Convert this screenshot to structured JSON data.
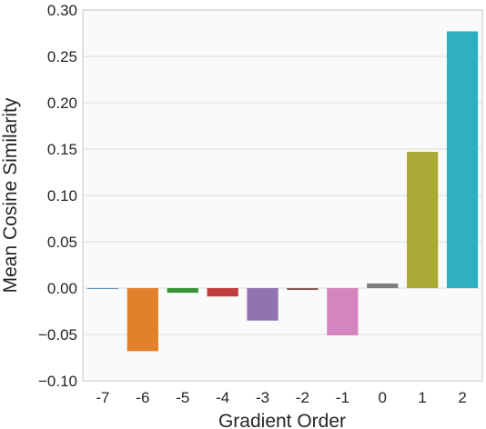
{
  "chart_data": {
    "type": "bar",
    "title": "",
    "xlabel": "Gradient Order",
    "ylabel": "Mean Cosine Similarity",
    "categories": [
      "-7",
      "-6",
      "-5",
      "-4",
      "-3",
      "-2",
      "-1",
      "0",
      "1",
      "2"
    ],
    "values": [
      0.0,
      -0.068,
      -0.005,
      -0.009,
      -0.035,
      -0.002,
      -0.051,
      0.005,
      0.147,
      0.277
    ],
    "colors": [
      "#3274a1",
      "#e1812c",
      "#3a923a",
      "#c03d3e",
      "#9372b2",
      "#845b53",
      "#d684bd",
      "#7f7f7f",
      "#a9aa35",
      "#2eb0c0"
    ],
    "ylim": [
      -0.1,
      0.3
    ],
    "yticks": [
      -0.1,
      -0.05,
      0.0,
      0.05,
      0.1,
      0.15,
      0.2,
      0.25,
      0.3
    ],
    "ytick_labels": [
      "−0.10",
      "−0.05",
      "0.00",
      "0.05",
      "0.10",
      "0.15",
      "0.20",
      "0.25",
      "0.30"
    ],
    "grid": true,
    "background": "#fafafa",
    "grid_color": "#dcdcdc"
  }
}
